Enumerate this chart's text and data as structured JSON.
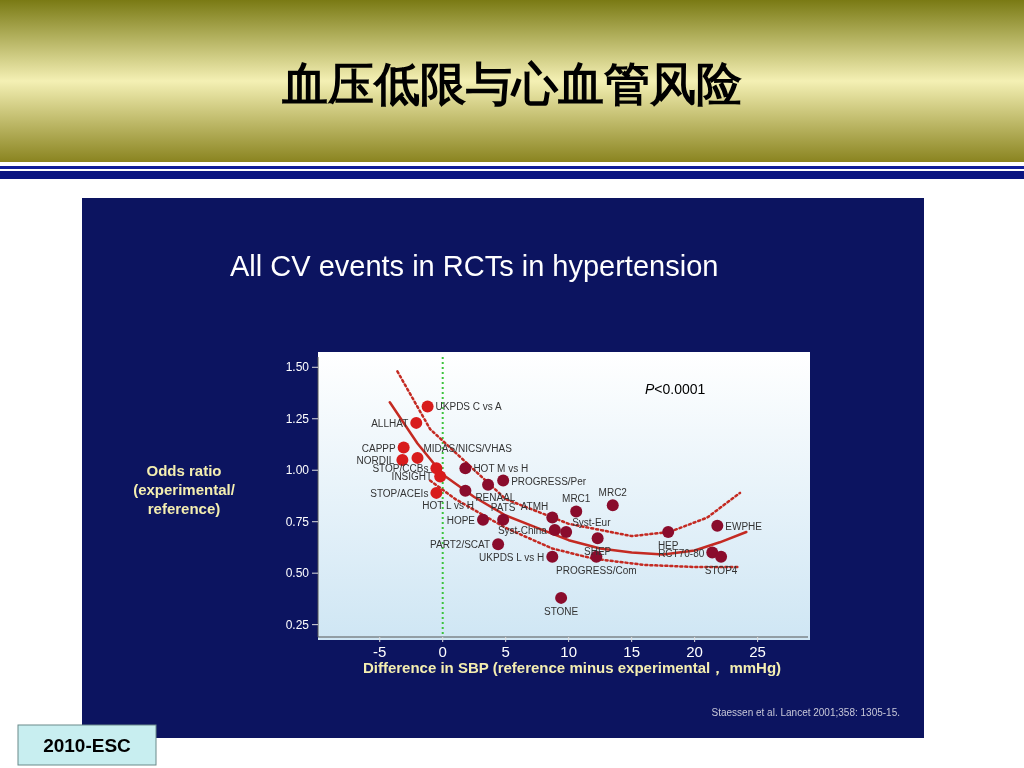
{
  "chart_data": {
    "type": "scatter",
    "title": "血压低限与心血管风险",
    "subtitle": "All CV events in RCTs in hypertension",
    "xlabel": "Difference in SBP (reference minus experimental， mmHg)",
    "ylabel": "Odds ratio (experimental/ reference)",
    "xlim": [
      -9.9,
      29
    ],
    "ylim": [
      0.19,
      1.55
    ],
    "xticks": [
      -5,
      0,
      5,
      10,
      15,
      20,
      25
    ],
    "yticks": [
      {
        "value": 0.25,
        "label": "0.25"
      },
      {
        "value": 0.5,
        "label": "0.50"
      },
      {
        "value": 0.75,
        "label": "0.75"
      },
      {
        "value": 1.0,
        "label": "1.00"
      },
      {
        "value": 1.25,
        "label": "1.25"
      },
      {
        "value": 1.5,
        "label": "1.50"
      }
    ],
    "grid": false,
    "ref_lines": [
      {
        "axis": "x",
        "value": 0,
        "color": "#3cc43c",
        "line_style": "dotted"
      }
    ],
    "series": [
      {
        "marker": "circle",
        "x": [
          -1.2,
          -2.1,
          -3.1,
          -3.2,
          -2.0,
          -0.5,
          -0.2,
          -0.5,
          1.8,
          4.8,
          1.8,
          3.6,
          3.2,
          4.8,
          8.7,
          8.9,
          9.8,
          10.6,
          13.5,
          12.3,
          12.2,
          8.7,
          4.4,
          17.9,
          21.8,
          21.4,
          22.1,
          9.4
        ],
        "values": [
          1.31,
          1.23,
          1.11,
          1.05,
          1.06,
          1.01,
          0.97,
          0.89,
          1.01,
          0.95,
          0.9,
          0.93,
          0.76,
          0.76,
          0.77,
          0.71,
          0.7,
          0.8,
          0.83,
          0.67,
          0.58,
          0.58,
          0.64,
          0.7,
          0.73,
          0.6,
          0.58,
          0.38
        ],
        "colors": [
          "#d81c1c",
          "#d81c1c",
          "#d81c1c",
          "#d81c1c",
          "#d81c1c",
          "#d81c1c",
          "#d81c1c",
          "#d81c1c",
          "#8a0c2c",
          "#8a0c2c",
          "#8a0c2c",
          "#8a0c2c",
          "#8a0c2c",
          "#8a0c2c",
          "#8a0c2c",
          "#8a0c2c",
          "#8a0c2c",
          "#8a0c2c",
          "#8a0c2c",
          "#8a0c2c",
          "#8a0c2c",
          "#8a0c2c",
          "#8a0c2c",
          "#8a0c2c",
          "#8a0c2c",
          "#8a0c2c",
          "#8a0c2c",
          "#8a0c2c"
        ]
      },
      {
        "type": "line",
        "color": "#c42a22",
        "line_style": "solid",
        "x": [
          -4.2,
          -2,
          0,
          2.5,
          5,
          7.5,
          10,
          12.5,
          15,
          17.5,
          20,
          22,
          24.1
        ],
        "values": [
          1.33,
          1.13,
          0.98,
          0.87,
          0.78,
          0.72,
          0.66,
          0.62,
          0.6,
          0.59,
          0.61,
          0.65,
          0.7
        ]
      },
      {
        "type": "line",
        "color": "#c42a22",
        "line_style": "dotted",
        "x": [
          -3.6,
          -1,
          2,
          5,
          10,
          15,
          18,
          21,
          23.6
        ],
        "values": [
          1.48,
          1.2,
          1.03,
          0.86,
          0.74,
          0.68,
          0.7,
          0.77,
          0.89
        ]
      },
      {
        "type": "line",
        "color": "#c42a22",
        "line_style": "dotted",
        "x": [
          -1,
          1,
          2.7,
          5,
          8.7,
          12,
          16,
          20,
          23.5
        ],
        "values": [
          0.95,
          0.86,
          0.8,
          0.72,
          0.62,
          0.57,
          0.54,
          0.53,
          0.53
        ]
      }
    ],
    "annotations": [
      {
        "text": "UKPDS C vs A",
        "x": -1.2,
        "y": 1.31
      },
      {
        "text": "ALLHAT",
        "x": -2.1,
        "y": 1.23
      },
      {
        "text": "CAPPP",
        "x": -3.1,
        "y": 1.11
      },
      {
        "text": "NORDIL",
        "x": -3.2,
        "y": 1.05
      },
      {
        "text": "MIDAS/NICS/VHAS",
        "x": -2.0,
        "y": 1.06
      },
      {
        "text": "STOP/CCBs",
        "x": -0.5,
        "y": 1.01
      },
      {
        "text": "INSIGHT",
        "x": -0.2,
        "y": 0.97
      },
      {
        "text": "STOP/ACEIs",
        "x": -0.5,
        "y": 0.89
      },
      {
        "text": "HOT M vs H",
        "x": 1.8,
        "y": 1.01
      },
      {
        "text": "PROGRESS/Per",
        "x": 4.8,
        "y": 0.95
      },
      {
        "text": "RENAAL",
        "x": 1.8,
        "y": 0.9
      },
      {
        "text": "HOT L vs H",
        "x": 3.6,
        "y": 0.93
      },
      {
        "text": "HOPE",
        "x": 3.2,
        "y": 0.76
      },
      {
        "text": "PATS",
        "x": 4.8,
        "y": 0.76
      },
      {
        "text": "ATMH",
        "x": 8.7,
        "y": 0.77
      },
      {
        "text": "Syst-China",
        "x": 8.9,
        "y": 0.71
      },
      {
        "text": "Syst-Eur",
        "x": 9.8,
        "y": 0.7
      },
      {
        "text": "MRC1",
        "x": 10.6,
        "y": 0.8
      },
      {
        "text": "MRC2",
        "x": 13.5,
        "y": 0.83
      },
      {
        "text": "SHEP",
        "x": 12.3,
        "y": 0.67
      },
      {
        "text": "PROGRESS/Com",
        "x": 12.2,
        "y": 0.58
      },
      {
        "text": "UKPDS L vs H",
        "x": 8.7,
        "y": 0.58
      },
      {
        "text": "PART2/SCAT",
        "x": 4.4,
        "y": 0.64
      },
      {
        "text": "HEP",
        "x": 17.9,
        "y": 0.7
      },
      {
        "text": "EWPHE",
        "x": 21.8,
        "y": 0.73
      },
      {
        "text": "RCT70-80",
        "x": 21.4,
        "y": 0.6
      },
      {
        "text": "STOP4",
        "x": 22.1,
        "y": 0.58
      },
      {
        "text": "STONE",
        "x": 9.4,
        "y": 0.38
      },
      "*P*<0.0001",
      "Staessen et al. Lancet 2001;358: 1305-15.",
      "2010-ESC"
    ]
  }
}
